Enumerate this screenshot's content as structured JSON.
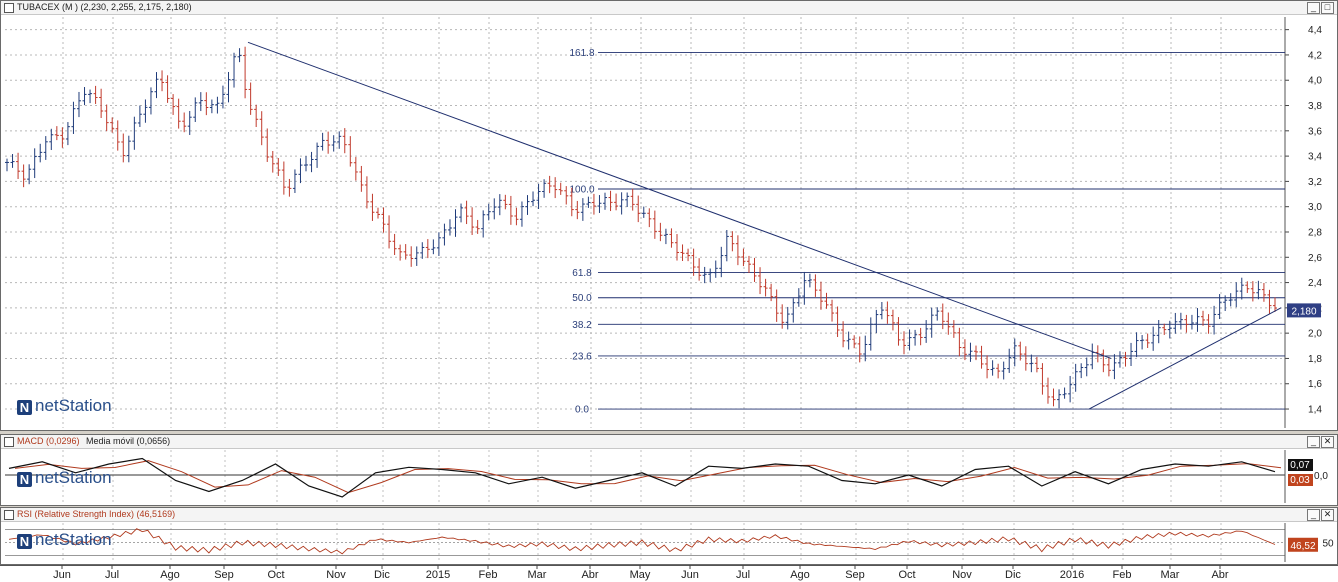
{
  "main_panel": {
    "title": "TUBACEX (M ) (2,230, 2,255, 2,175, 2,180)",
    "price_tag": "2,180",
    "logo": "netStation"
  },
  "macd_panel": {
    "title_macd": "MACD (0,0296)",
    "title_ma": "Media móvil (0,0656)",
    "value_high": "0,07",
    "value_low": "0,03",
    "zero_label": "0,0",
    "logo": "netStation"
  },
  "rsi_panel": {
    "title": "RSI (Relative Strength Index) (46,5169)",
    "value": "46,52",
    "level_label": "50",
    "logo": "netStation"
  },
  "window_buttons": {
    "minimize": "_",
    "maximize": "□",
    "close": "✕"
  },
  "colors": {
    "up_bar": "#1f3b7a",
    "down_bar": "#c0392b",
    "trendline": "#1f2f6e",
    "fib": "#1f2f6e",
    "macd": "#111111",
    "signal": "#b03a1e",
    "rsi": "#b03a1e"
  },
  "chart_data": {
    "type": "ohlc",
    "ylim": [
      1.25,
      4.5
    ],
    "yticks": [
      "4,4",
      "4,2",
      "4,0",
      "3,8",
      "3,6",
      "3,4",
      "3,2",
      "3,0",
      "2,8",
      "2,6",
      "2,4",
      "2,2",
      "2,0",
      "1,8",
      "1,6",
      "1,4"
    ],
    "ytick_values": [
      4.4,
      4.2,
      4.0,
      3.8,
      3.6,
      3.4,
      3.2,
      3.0,
      2.8,
      2.6,
      2.4,
      2.2,
      2.0,
      1.8,
      1.6,
      1.4
    ],
    "x_months": [
      "Jun",
      "Jul",
      "Ago",
      "Sep",
      "Oct",
      "Nov",
      "Dic",
      "2015",
      "Feb",
      "Mar",
      "Abr",
      "May",
      "Jun",
      "Jul",
      "Ago",
      "Sep",
      "Oct",
      "Nov",
      "Dic",
      "2016",
      "Feb",
      "Mar",
      "Abr"
    ],
    "price_path": [
      [
        0,
        3.35
      ],
      [
        2,
        3.2
      ],
      [
        4,
        3.55
      ],
      [
        6,
        3.6
      ],
      [
        8,
        3.9
      ],
      [
        10,
        3.75
      ],
      [
        12,
        3.45
      ],
      [
        14,
        3.75
      ],
      [
        16,
        4.0
      ],
      [
        18,
        3.65
      ],
      [
        20,
        3.85
      ],
      [
        22,
        3.75
      ],
      [
        24,
        4.25
      ],
      [
        25,
        3.9
      ],
      [
        27,
        3.45
      ],
      [
        29,
        3.1
      ],
      [
        31,
        3.35
      ],
      [
        33,
        3.55
      ],
      [
        35,
        3.5
      ],
      [
        37,
        3.1
      ],
      [
        39,
        2.9
      ],
      [
        41,
        2.6
      ],
      [
        43,
        2.6
      ],
      [
        45,
        2.75
      ],
      [
        47,
        3.0
      ],
      [
        49,
        2.8
      ],
      [
        51,
        3.05
      ],
      [
        53,
        2.95
      ],
      [
        55,
        3.1
      ],
      [
        57,
        3.15
      ],
      [
        59,
        3.0
      ],
      [
        61,
        3.05
      ],
      [
        63,
        3.0
      ],
      [
        65,
        3.05
      ],
      [
        67,
        2.9
      ],
      [
        69,
        2.7
      ],
      [
        71,
        2.55
      ],
      [
        73,
        2.45
      ],
      [
        75,
        2.75
      ],
      [
        77,
        2.5
      ],
      [
        79,
        2.35
      ],
      [
        81,
        2.1
      ],
      [
        83,
        2.4
      ],
      [
        85,
        2.25
      ],
      [
        87,
        2.0
      ],
      [
        89,
        1.85
      ],
      [
        91,
        2.2
      ],
      [
        93,
        1.95
      ],
      [
        95,
        2.0
      ],
      [
        97,
        2.15
      ],
      [
        99,
        1.9
      ],
      [
        101,
        1.85
      ],
      [
        103,
        1.65
      ],
      [
        105,
        1.85
      ],
      [
        107,
        1.75
      ],
      [
        109,
        1.45
      ],
      [
        111,
        1.6
      ],
      [
        113,
        1.85
      ],
      [
        115,
        1.75
      ],
      [
        117,
        1.85
      ],
      [
        119,
        1.95
      ],
      [
        121,
        2.1
      ],
      [
        123,
        2.1
      ],
      [
        125,
        2.05
      ],
      [
        127,
        2.3
      ],
      [
        129,
        2.4
      ],
      [
        131,
        2.25
      ],
      [
        132,
        2.18
      ]
    ],
    "trendlines": [
      {
        "from": [
          "Sep 2014",
          4.3
        ],
        "to": [
          "Feb 2016",
          1.8
        ]
      },
      {
        "from": [
          "Ene 2016",
          1.4
        ],
        "to": [
          "May 2016",
          2.2
        ]
      }
    ],
    "fibonacci": [
      {
        "label": "161.8",
        "value": 4.22
      },
      {
        "label": "100.0",
        "value": 3.14
      },
      {
        "label": "61.8",
        "value": 2.48
      },
      {
        "label": "50.0",
        "value": 2.28
      },
      {
        "label": "38.2",
        "value": 2.07
      },
      {
        "label": "23.6",
        "value": 1.82
      },
      {
        "label": "0.0",
        "value": 1.4
      }
    ],
    "macd": {
      "zero": 0.0,
      "last_macd": 0.03,
      "last_signal": 0.07,
      "path": [
        [
          0,
          0.06
        ],
        [
          6,
          0.12
        ],
        [
          12,
          0.02
        ],
        [
          18,
          0.1
        ],
        [
          24,
          0.15
        ],
        [
          30,
          -0.05
        ],
        [
          36,
          -0.15
        ],
        [
          42,
          -0.05
        ],
        [
          48,
          0.1
        ],
        [
          54,
          -0.1
        ],
        [
          60,
          -0.2
        ],
        [
          66,
          0.02
        ],
        [
          72,
          0.07
        ],
        [
          78,
          0.05
        ],
        [
          84,
          0.02
        ],
        [
          90,
          -0.08
        ],
        [
          96,
          -0.02
        ],
        [
          102,
          -0.12
        ],
        [
          108,
          -0.05
        ],
        [
          114,
          0.02
        ],
        [
          120,
          -0.1
        ],
        [
          126,
          0.08
        ],
        [
          132,
          0.06
        ],
        [
          138,
          0.1
        ],
        [
          144,
          0.08
        ],
        [
          150,
          -0.05
        ],
        [
          156,
          -0.08
        ],
        [
          162,
          0.0
        ],
        [
          168,
          -0.1
        ],
        [
          174,
          0.05
        ],
        [
          180,
          0.08
        ],
        [
          186,
          -0.1
        ],
        [
          192,
          0.03
        ],
        [
          198,
          -0.08
        ],
        [
          204,
          0.05
        ],
        [
          210,
          0.1
        ],
        [
          216,
          0.08
        ],
        [
          222,
          0.12
        ],
        [
          228,
          0.03
        ]
      ]
    },
    "rsi": {
      "level": 50,
      "last": 46.52,
      "path": [
        [
          0,
          55
        ],
        [
          6,
          62
        ],
        [
          12,
          48
        ],
        [
          18,
          58
        ],
        [
          24,
          70
        ],
        [
          30,
          42
        ],
        [
          36,
          38
        ],
        [
          42,
          50
        ],
        [
          48,
          46
        ],
        [
          54,
          40
        ],
        [
          60,
          35
        ],
        [
          66,
          55
        ],
        [
          72,
          50
        ],
        [
          78,
          58
        ],
        [
          84,
          52
        ],
        [
          90,
          44
        ],
        [
          96,
          48
        ],
        [
          102,
          40
        ],
        [
          108,
          46
        ],
        [
          114,
          50
        ],
        [
          120,
          38
        ],
        [
          126,
          55
        ],
        [
          132,
          52
        ],
        [
          138,
          60
        ],
        [
          144,
          48
        ],
        [
          150,
          44
        ],
        [
          156,
          40
        ],
        [
          162,
          52
        ],
        [
          168,
          46
        ],
        [
          174,
          50
        ],
        [
          180,
          56
        ],
        [
          186,
          40
        ],
        [
          192,
          55
        ],
        [
          198,
          45
        ],
        [
          204,
          58
        ],
        [
          210,
          64
        ],
        [
          216,
          60
        ],
        [
          222,
          68
        ],
        [
          228,
          47
        ]
      ]
    }
  }
}
